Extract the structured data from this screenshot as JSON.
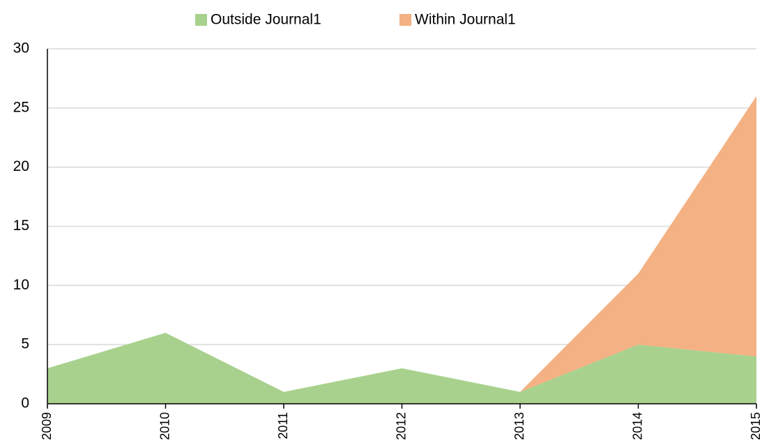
{
  "chart_data": {
    "type": "area",
    "stacked": true,
    "categories": [
      "2009",
      "2010",
      "2011",
      "2012",
      "2013",
      "2014",
      "2015"
    ],
    "series": [
      {
        "name": "Outside Journal1",
        "color": "#a9d18e",
        "values": [
          3,
          6,
          1,
          3,
          1,
          5,
          4
        ]
      },
      {
        "name": "Within Journal1",
        "color": "#f4b183",
        "values": [
          0,
          0,
          0,
          0,
          0,
          6,
          22
        ]
      }
    ],
    "ylim": [
      0,
      30
    ],
    "yticks": [
      0,
      5,
      10,
      15,
      20,
      25,
      30
    ],
    "grid": true,
    "legend": "top"
  }
}
